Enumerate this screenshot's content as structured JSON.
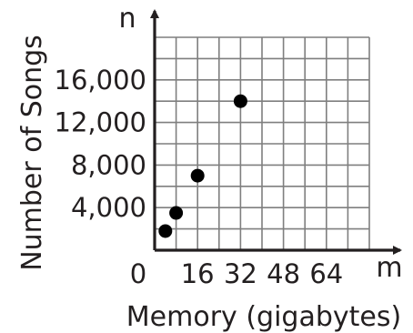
{
  "chart_data": {
    "type": "scatter",
    "xlabel": "Memory (gigabytes)",
    "ylabel": "Number of Songs",
    "x_axis_letter": "m",
    "y_axis_letter": "n",
    "x_ticks": [
      "0",
      "16",
      "32",
      "48",
      "64"
    ],
    "y_ticks": [
      "4,000",
      "8,000",
      "12,000",
      "16,000"
    ],
    "xlim": [
      0,
      80
    ],
    "ylim": [
      0,
      20000
    ],
    "grid": true,
    "points": [
      {
        "x": 4,
        "y": 1800
      },
      {
        "x": 8,
        "y": 3500
      },
      {
        "x": 16,
        "y": 7000
      },
      {
        "x": 32,
        "y": 14000
      }
    ]
  }
}
